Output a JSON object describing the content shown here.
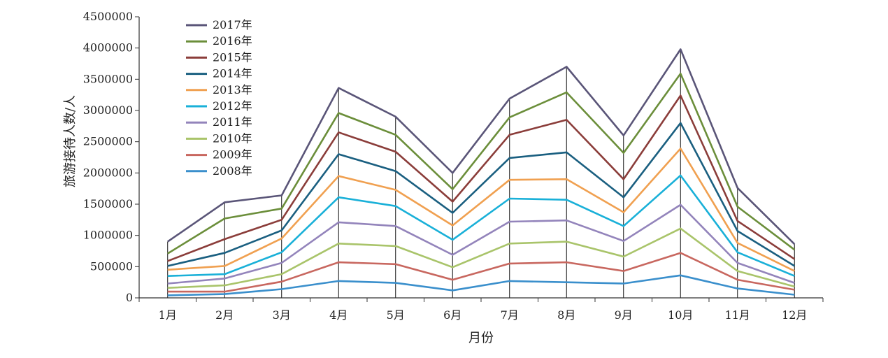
{
  "chart_data": {
    "type": "line",
    "title": "",
    "xlabel": "月份",
    "ylabel": "旅游接待人数/人",
    "categories": [
      "1月",
      "2月",
      "3月",
      "4月",
      "5月",
      "6月",
      "7月",
      "8月",
      "9月",
      "10月",
      "11月",
      "12月"
    ],
    "ylim": [
      0,
      4500000
    ],
    "yticks": [
      0,
      500000,
      1000000,
      1500000,
      2000000,
      2500000,
      3000000,
      3500000,
      4000000,
      4500000
    ],
    "ytick_labels": [
      "0",
      "500000",
      "1000000",
      "1500000",
      "2000000",
      "2500000",
      "3000000",
      "3500000",
      "4000000",
      "4500000"
    ],
    "grid": false,
    "legend_position": "top-left",
    "drop_lines": true,
    "series": [
      {
        "name": "2017年",
        "color": "#5a5578",
        "values": [
          900000,
          1530000,
          1640000,
          3360000,
          2900000,
          2000000,
          3190000,
          3700000,
          2600000,
          3980000,
          1760000,
          860000
        ]
      },
      {
        "name": "2016年",
        "color": "#6b8e3a",
        "values": [
          710000,
          1270000,
          1430000,
          2960000,
          2610000,
          1740000,
          2890000,
          3290000,
          2320000,
          3590000,
          1460000,
          770000
        ]
      },
      {
        "name": "2015年",
        "color": "#8b3d3a",
        "values": [
          590000,
          940000,
          1250000,
          2650000,
          2340000,
          1540000,
          2610000,
          2850000,
          1900000,
          3240000,
          1230000,
          620000
        ]
      },
      {
        "name": "2014年",
        "color": "#1a5f80",
        "values": [
          510000,
          720000,
          1080000,
          2300000,
          2030000,
          1360000,
          2240000,
          2330000,
          1610000,
          2800000,
          1070000,
          510000
        ]
      },
      {
        "name": "2013年",
        "color": "#f0a050",
        "values": [
          450000,
          510000,
          950000,
          1950000,
          1730000,
          1160000,
          1890000,
          1900000,
          1370000,
          2390000,
          880000,
          430000
        ]
      },
      {
        "name": "2012年",
        "color": "#19b0d8",
        "values": [
          350000,
          380000,
          730000,
          1610000,
          1470000,
          930000,
          1590000,
          1570000,
          1150000,
          1960000,
          730000,
          350000
        ]
      },
      {
        "name": "2011年",
        "color": "#9384bb",
        "values": [
          230000,
          310000,
          560000,
          1210000,
          1150000,
          690000,
          1220000,
          1240000,
          910000,
          1490000,
          560000,
          240000
        ]
      },
      {
        "name": "2010年",
        "color": "#a9c46a",
        "values": [
          160000,
          200000,
          380000,
          870000,
          830000,
          490000,
          870000,
          900000,
          660000,
          1110000,
          430000,
          180000
        ]
      },
      {
        "name": "2009年",
        "color": "#c8675f",
        "values": [
          100000,
          100000,
          260000,
          570000,
          540000,
          290000,
          550000,
          570000,
          430000,
          720000,
          290000,
          130000
        ]
      },
      {
        "name": "2008年",
        "color": "#3a8fcc",
        "values": [
          40000,
          60000,
          140000,
          270000,
          240000,
          120000,
          270000,
          250000,
          230000,
          360000,
          150000,
          50000
        ]
      }
    ]
  }
}
